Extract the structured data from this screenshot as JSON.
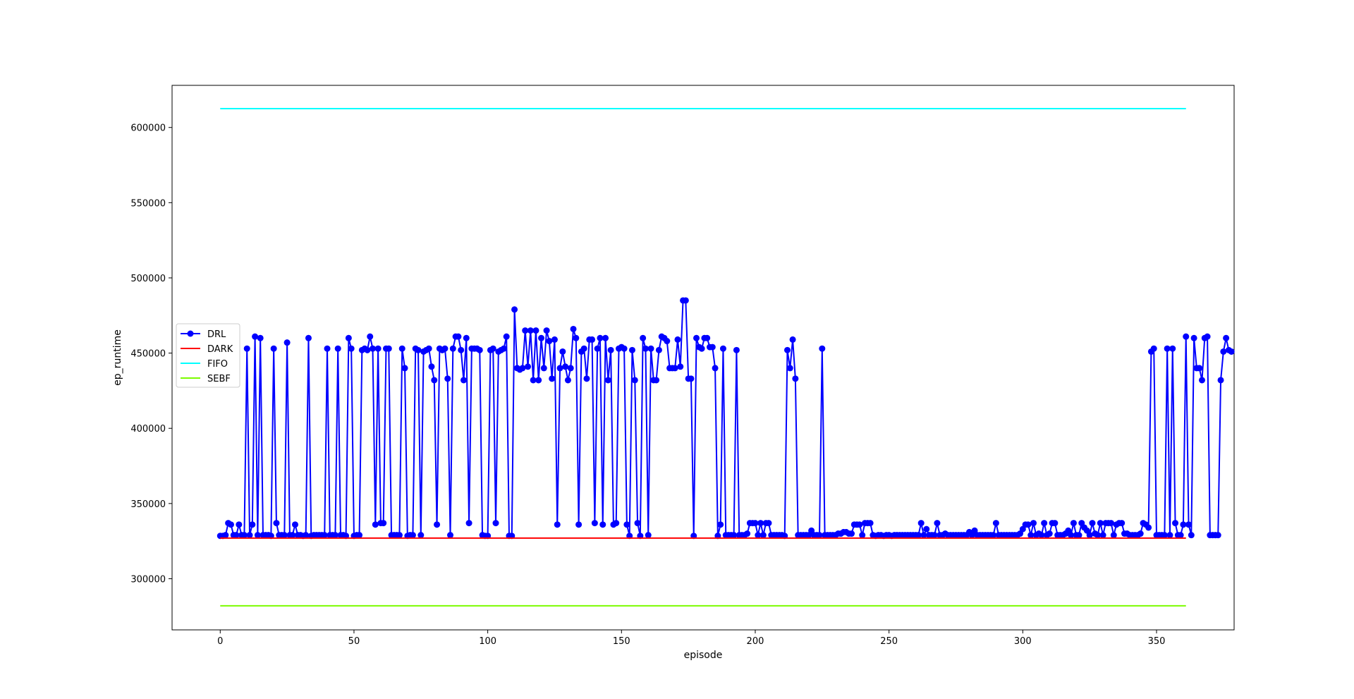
{
  "chart_data": {
    "type": "line",
    "xlabel": "episode",
    "ylabel": "ep_runtime",
    "xlim": [
      -18,
      379
    ],
    "ylim": [
      266000,
      628000
    ],
    "x_ticks": [
      0,
      50,
      100,
      150,
      200,
      250,
      300,
      350
    ],
    "y_ticks": [
      300000,
      350000,
      400000,
      450000,
      500000,
      550000,
      600000
    ],
    "legend_position": "center-left",
    "grid": false,
    "series": [
      {
        "name": "DRL",
        "color": "#0000ff",
        "marker": "circle",
        "x_start": 0,
        "x_step": 1,
        "values": [
          328500,
          328500,
          329000,
          337000,
          336000,
          329000,
          329000,
          336000,
          329000,
          329000,
          453000,
          329000,
          336000,
          461000,
          329000,
          460000,
          329000,
          329000,
          329000,
          328500,
          453000,
          337000,
          329000,
          329000,
          329000,
          457000,
          329000,
          329000,
          336000,
          329000,
          329000,
          328500,
          329000,
          460000,
          328500,
          329000,
          329000,
          329000,
          329000,
          329000,
          453000,
          329000,
          329000,
          329000,
          453000,
          329000,
          329000,
          328500,
          460000,
          453000,
          328500,
          329000,
          329000,
          452000,
          453000,
          452000,
          461000,
          453000,
          336000,
          453000,
          337000,
          337000,
          453000,
          453000,
          329000,
          329000,
          329000,
          329000,
          453000,
          440000,
          328500,
          329000,
          329000,
          453000,
          452000,
          329000,
          451000,
          452000,
          453000,
          441000,
          432000,
          336000,
          453000,
          452000,
          453000,
          433000,
          329000,
          453000,
          461000,
          461000,
          452000,
          432000,
          460000,
          337000,
          453000,
          453000,
          453000,
          452000,
          329000,
          328500,
          328500,
          452000,
          453000,
          337000,
          451000,
          452000,
          453000,
          461000,
          328500,
          328500,
          479000,
          440000,
          439000,
          440000,
          465000,
          441000,
          465000,
          432000,
          465000,
          432000,
          460000,
          440000,
          465000,
          458000,
          433000,
          459000,
          336000,
          440000,
          451000,
          441000,
          432000,
          440000,
          466000,
          460000,
          336000,
          451000,
          453000,
          433000,
          459000,
          459000,
          337000,
          453000,
          460000,
          336000,
          460000,
          432000,
          452000,
          336000,
          337000,
          453000,
          454000,
          453000,
          336000,
          328500,
          452000,
          432000,
          337000,
          328500,
          460000,
          453000,
          329000,
          453000,
          432000,
          432000,
          452000,
          461000,
          460000,
          458000,
          440000,
          440000,
          440000,
          459000,
          441000,
          485000,
          485000,
          433000,
          433000,
          328500,
          460000,
          454000,
          453000,
          460000,
          460000,
          454000,
          454000,
          440000,
          328500,
          336000,
          453000,
          329000,
          329000,
          329000,
          329000,
          452000,
          329000,
          329000,
          329000,
          330000,
          337000,
          337000,
          337000,
          329000,
          337000,
          329000,
          337000,
          337000,
          329000,
          329000,
          329000,
          329000,
          329000,
          328500,
          452000,
          440000,
          459000,
          433000,
          329000,
          329000,
          329000,
          329000,
          329000,
          332000,
          329000,
          329000,
          329000,
          453000,
          329000,
          329000,
          329000,
          329000,
          329000,
          330000,
          330000,
          331000,
          331000,
          330000,
          330000,
          336000,
          336000,
          336000,
          329000,
          337000,
          337000,
          337000,
          329000,
          328500,
          329000,
          329000,
          328500,
          329000,
          329000,
          328500,
          329000,
          329000,
          329000,
          329000,
          329000,
          329000,
          329000,
          329000,
          329000,
          329000,
          337000,
          329000,
          333000,
          329000,
          329000,
          329000,
          337000,
          329000,
          329000,
          330000,
          329000,
          329000,
          329000,
          329000,
          329000,
          329000,
          329000,
          329000,
          331000,
          329000,
          332000,
          329000,
          329000,
          329000,
          329000,
          329000,
          329000,
          329000,
          337000,
          329000,
          329000,
          329000,
          329000,
          329000,
          329000,
          329000,
          329000,
          330000,
          333000,
          336000,
          336000,
          329000,
          337000,
          329000,
          330000,
          329000,
          337000,
          329000,
          330000,
          337000,
          337000,
          329000,
          329000,
          329000,
          330000,
          332000,
          329000,
          337000,
          329000,
          329000,
          337000,
          334000,
          332000,
          329000,
          337000,
          330000,
          329000,
          337000,
          329000,
          337000,
          337000,
          337000,
          329000,
          336000,
          337000,
          337000,
          330000,
          330000,
          329000,
          329000,
          329000,
          329000,
          330000,
          337000,
          336000,
          334000,
          451000,
          453000,
          329000,
          329000,
          329000,
          329000,
          453000,
          329000,
          453000,
          337000,
          329000,
          329000,
          336000,
          461000,
          336000,
          329000,
          460000,
          440000,
          440000,
          432000,
          460000,
          461000,
          329000,
          329000,
          329000,
          329000,
          432000,
          451000,
          460000,
          452000,
          451000
        ]
      },
      {
        "name": "DARK",
        "color": "#ff0000",
        "x_range": [
          0,
          361
        ],
        "constant": 327000
      },
      {
        "name": "FIFO",
        "color": "#00ffff",
        "x_range": [
          0,
          361
        ],
        "constant": 612500
      },
      {
        "name": "SEBF",
        "color": "#7cfc00",
        "x_range": [
          0,
          361
        ],
        "constant": 282000
      }
    ]
  }
}
